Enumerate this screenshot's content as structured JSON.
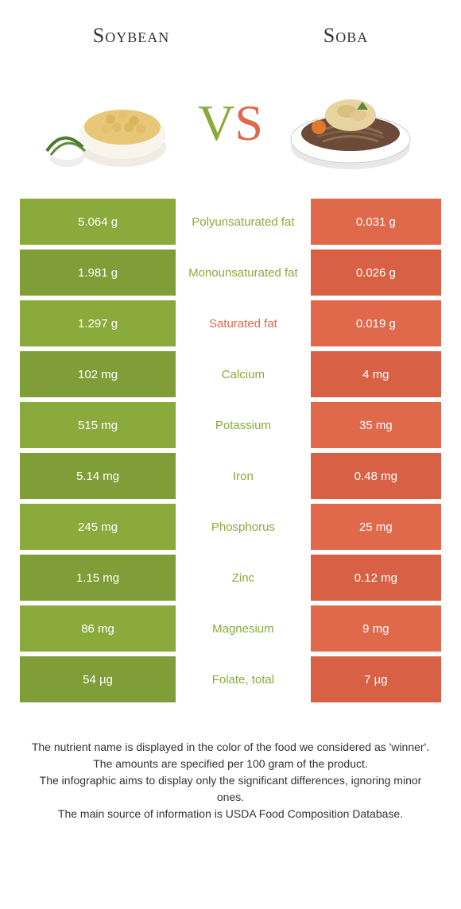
{
  "colors": {
    "left": "#8aaa3b",
    "right": "#e0684b",
    "left_row_alt": "#7f9e37",
    "right_row_alt": "#d86145",
    "text_dark": "#333333"
  },
  "header": {
    "left_title": "Soybean",
    "right_title": "Soba"
  },
  "vs": {
    "v": "V",
    "s": "S"
  },
  "rows": [
    {
      "left": "5.064 g",
      "label": "Polyunsaturated fat",
      "right": "0.031 g",
      "winner": "left"
    },
    {
      "left": "1.981 g",
      "label": "Monounsaturated fat",
      "right": "0.026 g",
      "winner": "left"
    },
    {
      "left": "1.297 g",
      "label": "Saturated fat",
      "right": "0.019 g",
      "winner": "right"
    },
    {
      "left": "102 mg",
      "label": "Calcium",
      "right": "4 mg",
      "winner": "left"
    },
    {
      "left": "515 mg",
      "label": "Potassium",
      "right": "35 mg",
      "winner": "left"
    },
    {
      "left": "5.14 mg",
      "label": "Iron",
      "right": "0.48 mg",
      "winner": "left"
    },
    {
      "left": "245 mg",
      "label": "Phosphorus",
      "right": "25 mg",
      "winner": "left"
    },
    {
      "left": "1.15 mg",
      "label": "Zinc",
      "right": "0.12 mg",
      "winner": "left"
    },
    {
      "left": "86 mg",
      "label": "Magnesium",
      "right": "9 mg",
      "winner": "left"
    },
    {
      "left": "54 µg",
      "label": "Folate, total",
      "right": "7 µg",
      "winner": "left"
    }
  ],
  "footer": {
    "line1": "The nutrient name is displayed in the color of the food we considered as 'winner'.",
    "line2": "The amounts are specified per 100 gram of the product.",
    "line3": "The infographic aims to display only the significant differences, ignoring minor ones.",
    "line4": "The main source of information is USDA Food Composition Database."
  }
}
